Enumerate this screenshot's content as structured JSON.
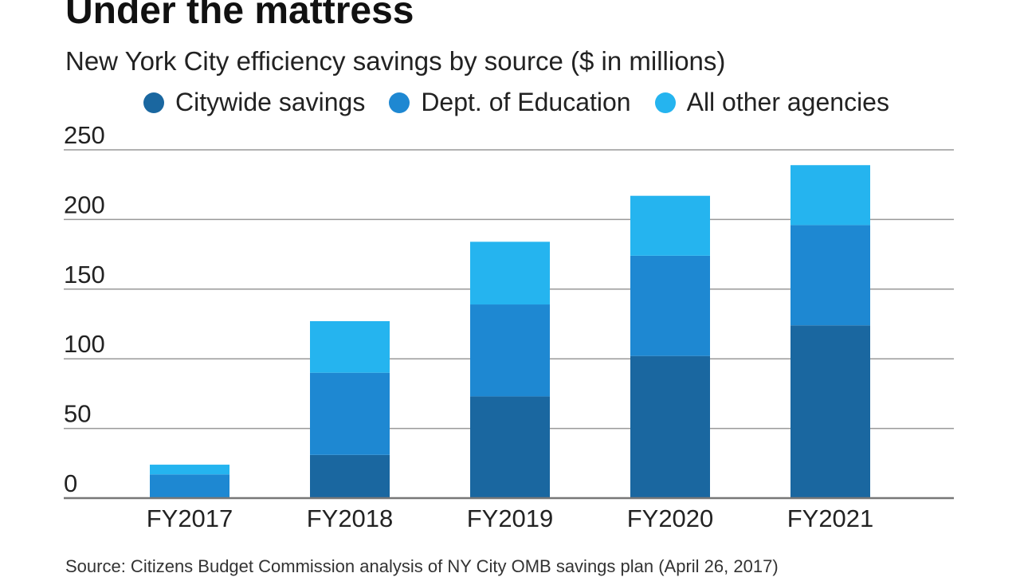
{
  "chart_data": {
    "type": "bar",
    "stacked": true,
    "title": "Under the mattress",
    "subtitle": "New York City efficiency savings by source ($ in millions)",
    "categories": [
      "FY2017",
      "FY2018",
      "FY2019",
      "FY2020",
      "FY2021"
    ],
    "series": [
      {
        "name": "Citywide savings",
        "color": "#1a67a0",
        "values": [
          0,
          31,
          73,
          102,
          124
        ]
      },
      {
        "name": "Dept. of Education",
        "color": "#1e88d2",
        "values": [
          17,
          59,
          66,
          72,
          72
        ]
      },
      {
        "name": "All other agencies",
        "color": "#25b4ef",
        "values": [
          7,
          37,
          45,
          43,
          43
        ]
      }
    ],
    "ylim": [
      0,
      250
    ],
    "yticks": [
      0,
      50,
      100,
      150,
      200,
      250
    ],
    "grid": true,
    "legend": "top",
    "source": "Source: Citizens Budget Commission analysis of NY City OMB savings plan (April 26, 2017)"
  }
}
